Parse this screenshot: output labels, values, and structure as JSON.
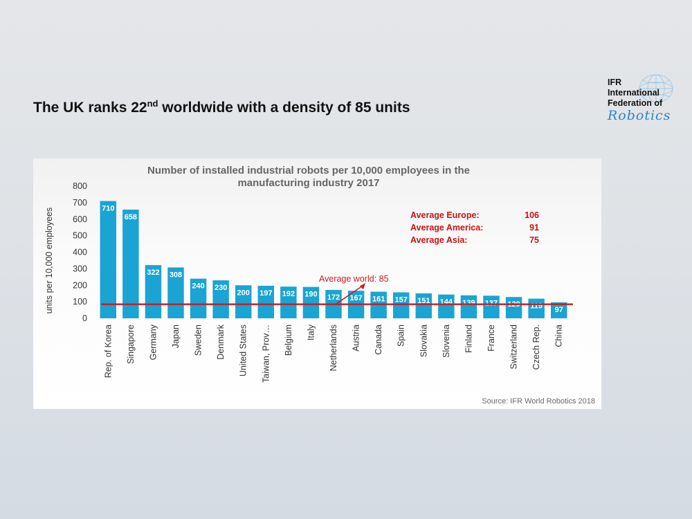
{
  "slide": {
    "title_prefix": "The UK ranks 22",
    "title_sup": "nd",
    "title_suffix": " worldwide with a density of 85 units"
  },
  "logo": {
    "line1": "IFR",
    "line2": "International",
    "line3": "Federation of",
    "script": "Robotics"
  },
  "chart_data": {
    "type": "bar",
    "title": [
      "Number of installed industrial robots per 10,000 employees in the",
      "manufacturing industry 2017"
    ],
    "ylabel": "units per 10,000 employees",
    "xlabel": "",
    "ylim": [
      0,
      800
    ],
    "yticks": [
      0,
      100,
      200,
      300,
      400,
      500,
      600,
      700,
      800
    ],
    "categories": [
      "Rep. of Korea",
      "Singapore",
      "Germany",
      "Japan",
      "Sweden",
      "Denmark",
      "United States",
      "Taiwan, Prov…",
      "Belgium",
      "Italy",
      "Netherlands",
      "Austria",
      "Canada",
      "Spain",
      "Slovakia",
      "Slovenia",
      "Finland",
      "France",
      "Switzerland",
      "Czech Rep.",
      "China"
    ],
    "values": [
      710,
      658,
      322,
      308,
      240,
      230,
      200,
      197,
      192,
      190,
      172,
      167,
      161,
      157,
      151,
      144,
      139,
      137,
      129,
      119,
      97
    ],
    "reference_line": {
      "value": 85,
      "label": "Average world: 85",
      "color": "#d11a1a"
    },
    "averages": [
      {
        "label": "Average Europe:",
        "value": "106"
      },
      {
        "label": "Average America:",
        "value": "91"
      },
      {
        "label": "Average Asia:",
        "value": "75"
      }
    ],
    "source": "Source: IFR World Robotics 2018",
    "grid": false,
    "bar_color": "#1aa4d4"
  }
}
